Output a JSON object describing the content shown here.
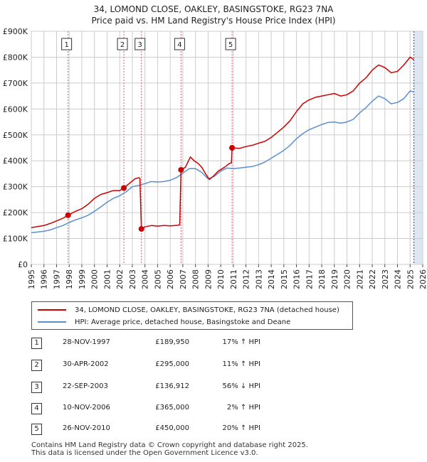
{
  "title_line1": "34, LOMOND CLOSE, OAKLEY, BASINGSTOKE, RG23 7NA",
  "title_line2": "Price paid vs. HM Land Registry's House Price Index (HPI)",
  "legend": {
    "property": "34, LOMOND CLOSE, OAKLEY, BASINGSTOKE, RG23 7NA (detached house)",
    "hpi": "HPI: Average price, detached house, Basingstoke and Deane"
  },
  "transactions": [
    {
      "num": "1",
      "date": "28-NOV-1997",
      "price": "£189,950",
      "hpi": "17% ↑ HPI"
    },
    {
      "num": "2",
      "date": "30-APR-2002",
      "price": "£295,000",
      "hpi": "11% ↑ HPI"
    },
    {
      "num": "3",
      "date": "22-SEP-2003",
      "price": "£136,912",
      "hpi": "56% ↓ HPI"
    },
    {
      "num": "4",
      "date": "10-NOV-2006",
      "price": "£365,000",
      "hpi": "2% ↑ HPI"
    },
    {
      "num": "5",
      "date": "26-NOV-2010",
      "price": "£450,000",
      "hpi": "20% ↑ HPI"
    }
  ],
  "footer_line1": "Contains HM Land Registry data © Crown copyright and database right 2025.",
  "footer_line2": "This data is licensed under the Open Government Licence v3.0.",
  "chart_data": {
    "type": "line",
    "title": "34, LOMOND CLOSE, OAKLEY, BASINGSTOKE, RG23 7NA",
    "subtitle": "Price paid vs. HM Land Registry's House Price Index (HPI)",
    "xlabel": "",
    "ylabel": "",
    "xlim": [
      1995,
      2026
    ],
    "ylim": [
      0,
      900000
    ],
    "x_ticks": [
      1995,
      1996,
      1997,
      1998,
      1999,
      2000,
      2001,
      2002,
      2003,
      2004,
      2005,
      2006,
      2007,
      2008,
      2009,
      2010,
      2011,
      2012,
      2013,
      2014,
      2015,
      2016,
      2017,
      2018,
      2019,
      2020,
      2021,
      2022,
      2023,
      2024,
      2025,
      2026
    ],
    "y_ticks": [
      {
        "value": 0,
        "label": "£0"
      },
      {
        "value": 100000,
        "label": "£100K"
      },
      {
        "value": 200000,
        "label": "£200K"
      },
      {
        "value": 300000,
        "label": "£300K"
      },
      {
        "value": 400000,
        "label": "£400K"
      },
      {
        "value": 500000,
        "label": "£500K"
      },
      {
        "value": 600000,
        "label": "£600K"
      },
      {
        "value": 700000,
        "label": "£700K"
      },
      {
        "value": 800000,
        "label": "£800K"
      },
      {
        "value": 900000,
        "label": "£900K"
      }
    ],
    "grid": true,
    "projection_start": 2025.3,
    "colors": {
      "property": "#cc0000",
      "hpi": "#5b8fd0",
      "marker_line": "#e06070",
      "shade": "#dde6f3"
    },
    "series": [
      {
        "name": "34, LOMOND CLOSE, OAKLEY, BASINGSTOKE, RG23 7NA (detached house)",
        "color": "#cc0000",
        "points": [
          [
            1995.0,
            142000
          ],
          [
            1995.5,
            146000
          ],
          [
            1996.0,
            150000
          ],
          [
            1996.5,
            158000
          ],
          [
            1997.0,
            168000
          ],
          [
            1997.5,
            178000
          ],
          [
            1997.9,
            189950
          ],
          [
            1998.5,
            205000
          ],
          [
            1999.0,
            215000
          ],
          [
            1999.5,
            232000
          ],
          [
            2000.0,
            255000
          ],
          [
            2000.5,
            270000
          ],
          [
            2001.0,
            277000
          ],
          [
            2001.5,
            285000
          ],
          [
            2002.0,
            285000
          ],
          [
            2002.33,
            295000
          ],
          [
            2002.7,
            310000
          ],
          [
            2003.2,
            330000
          ],
          [
            2003.5,
            335000
          ],
          [
            2003.6,
            332000
          ],
          [
            2003.72,
            136912
          ],
          [
            2004.0,
            145000
          ],
          [
            2004.5,
            150000
          ],
          [
            2005.0,
            148000
          ],
          [
            2005.5,
            150000
          ],
          [
            2006.0,
            149000
          ],
          [
            2006.6,
            151000
          ],
          [
            2006.75,
            153000
          ],
          [
            2006.86,
            365000
          ],
          [
            2007.2,
            375000
          ],
          [
            2007.6,
            415000
          ],
          [
            2007.9,
            400000
          ],
          [
            2008.2,
            390000
          ],
          [
            2008.5,
            375000
          ],
          [
            2008.8,
            350000
          ],
          [
            2009.1,
            328000
          ],
          [
            2009.4,
            340000
          ],
          [
            2009.8,
            360000
          ],
          [
            2010.3,
            375000
          ],
          [
            2010.7,
            390000
          ],
          [
            2010.85,
            392000
          ],
          [
            2010.9,
            450000
          ],
          [
            2011.5,
            448000
          ],
          [
            2012.0,
            455000
          ],
          [
            2012.5,
            460000
          ],
          [
            2013.0,
            468000
          ],
          [
            2013.5,
            475000
          ],
          [
            2014.0,
            490000
          ],
          [
            2014.5,
            510000
          ],
          [
            2015.0,
            530000
          ],
          [
            2015.5,
            555000
          ],
          [
            2016.0,
            590000
          ],
          [
            2016.5,
            620000
          ],
          [
            2017.0,
            635000
          ],
          [
            2017.5,
            645000
          ],
          [
            2018.0,
            650000
          ],
          [
            2018.5,
            655000
          ],
          [
            2019.0,
            660000
          ],
          [
            2019.5,
            650000
          ],
          [
            2020.0,
            655000
          ],
          [
            2020.5,
            670000
          ],
          [
            2021.0,
            700000
          ],
          [
            2021.5,
            720000
          ],
          [
            2022.0,
            750000
          ],
          [
            2022.5,
            770000
          ],
          [
            2023.0,
            760000
          ],
          [
            2023.5,
            740000
          ],
          [
            2024.0,
            745000
          ],
          [
            2024.5,
            770000
          ],
          [
            2025.0,
            800000
          ],
          [
            2025.3,
            790000
          ]
        ]
      },
      {
        "name": "HPI: Average price, detached house, Basingstoke and Deane",
        "color": "#5b8fd0",
        "points": [
          [
            1995.0,
            122000
          ],
          [
            1995.5,
            125000
          ],
          [
            1996.0,
            128000
          ],
          [
            1996.5,
            133000
          ],
          [
            1997.0,
            142000
          ],
          [
            1997.5,
            150000
          ],
          [
            1998.0,
            162000
          ],
          [
            1998.5,
            172000
          ],
          [
            1999.0,
            180000
          ],
          [
            1999.5,
            190000
          ],
          [
            2000.0,
            205000
          ],
          [
            2000.5,
            222000
          ],
          [
            2001.0,
            240000
          ],
          [
            2001.5,
            255000
          ],
          [
            2002.0,
            265000
          ],
          [
            2002.5,
            280000
          ],
          [
            2003.0,
            300000
          ],
          [
            2003.5,
            305000
          ],
          [
            2004.0,
            312000
          ],
          [
            2004.5,
            320000
          ],
          [
            2005.0,
            318000
          ],
          [
            2005.5,
            320000
          ],
          [
            2006.0,
            325000
          ],
          [
            2006.5,
            335000
          ],
          [
            2007.0,
            352000
          ],
          [
            2007.5,
            370000
          ],
          [
            2008.0,
            370000
          ],
          [
            2008.5,
            355000
          ],
          [
            2009.0,
            330000
          ],
          [
            2009.5,
            340000
          ],
          [
            2010.0,
            360000
          ],
          [
            2010.5,
            372000
          ],
          [
            2011.0,
            370000
          ],
          [
            2011.5,
            372000
          ],
          [
            2012.0,
            375000
          ],
          [
            2012.5,
            378000
          ],
          [
            2013.0,
            385000
          ],
          [
            2013.5,
            395000
          ],
          [
            2014.0,
            410000
          ],
          [
            2014.5,
            425000
          ],
          [
            2015.0,
            440000
          ],
          [
            2015.5,
            460000
          ],
          [
            2016.0,
            485000
          ],
          [
            2016.5,
            505000
          ],
          [
            2017.0,
            520000
          ],
          [
            2017.5,
            530000
          ],
          [
            2018.0,
            540000
          ],
          [
            2018.5,
            548000
          ],
          [
            2019.0,
            550000
          ],
          [
            2019.5,
            545000
          ],
          [
            2020.0,
            550000
          ],
          [
            2020.5,
            560000
          ],
          [
            2021.0,
            585000
          ],
          [
            2021.5,
            605000
          ],
          [
            2022.0,
            630000
          ],
          [
            2022.5,
            650000
          ],
          [
            2023.0,
            640000
          ],
          [
            2023.5,
            620000
          ],
          [
            2024.0,
            625000
          ],
          [
            2024.5,
            640000
          ],
          [
            2025.0,
            670000
          ],
          [
            2025.3,
            665000
          ]
        ]
      }
    ],
    "sales": [
      {
        "label": "1",
        "x": 1997.91,
        "y": 189950
      },
      {
        "label": "2",
        "x": 2002.33,
        "y": 295000
      },
      {
        "label": "3",
        "x": 2003.72,
        "y": 136912
      },
      {
        "label": "4",
        "x": 2006.86,
        "y": 365000
      },
      {
        "label": "5",
        "x": 2010.9,
        "y": 450000
      }
    ]
  }
}
